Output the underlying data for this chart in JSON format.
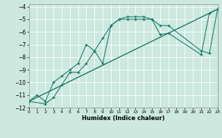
{
  "xlabel": "Humidex (Indice chaleur)",
  "xlim": [
    0,
    23
  ],
  "ylim": [
    -12.0,
    -3.8
  ],
  "background_color": "#cce8df",
  "grid_color": "#ffffff",
  "line_color": "#1a7a6a",
  "line1_x": [
    0,
    1,
    2,
    3,
    4,
    5,
    6,
    7,
    8,
    9,
    10,
    11,
    12,
    13,
    14,
    15,
    16,
    17,
    21,
    22,
    23
  ],
  "line1_y": [
    -11.5,
    -11.0,
    -11.5,
    -10.0,
    -9.5,
    -9.0,
    -8.5,
    -7.0,
    -7.5,
    -8.5,
    -5.5,
    -5.0,
    -4.8,
    -4.8,
    -4.8,
    -5.0,
    -6.2,
    -6.1,
    -7.8,
    -4.5,
    -4.2
  ],
  "line2_x": [
    0,
    2,
    3,
    4,
    5,
    6,
    7,
    8,
    9,
    10,
    11,
    12,
    13,
    14,
    15,
    16,
    17,
    21,
    22,
    23
  ],
  "line2_y": [
    -11.5,
    -11.7,
    -11.2,
    -10.2,
    -9.2,
    -9.2,
    -8.5,
    -7.5,
    -6.5,
    -5.5,
    -5.0,
    -5.0,
    -5.0,
    -5.0,
    -5.0,
    -5.5,
    -5.5,
    -7.5,
    -7.7,
    -4.2
  ],
  "line3_x": [
    0,
    23
  ],
  "line3_y": [
    -11.5,
    -4.2
  ],
  "line4_x": [
    0,
    23
  ],
  "line4_y": [
    -11.5,
    -4.2
  ]
}
